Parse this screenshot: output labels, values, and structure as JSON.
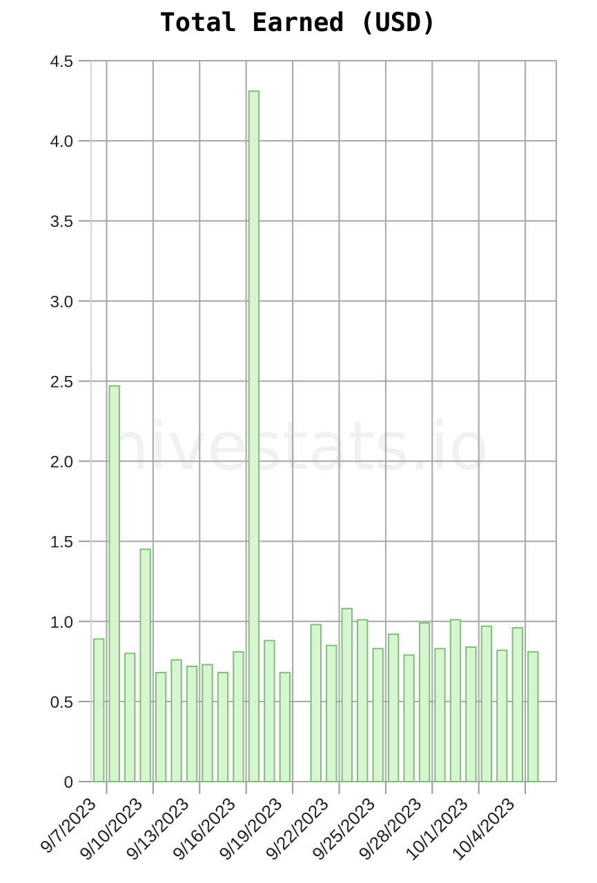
{
  "colors": {
    "bar_fill": "#d6f5d0",
    "bar_stroke": "#7fbf78",
    "grid": "#a6a6a6",
    "watermark": "#f1f1f1"
  },
  "watermark": "hivestats.io",
  "chart_data": {
    "type": "bar",
    "title": "Total Earned (USD)",
    "xlabel": "",
    "ylabel": "",
    "ylim": [
      0,
      4.5
    ],
    "grid": true,
    "y_ticks": [
      "0",
      "0.5",
      "1.0",
      "1.5",
      "2.0",
      "2.5",
      "3.0",
      "3.5",
      "4.0",
      "4.5"
    ],
    "x_tick_labels": [
      "9/7/2023",
      "9/10/2023",
      "9/13/2023",
      "9/16/2023",
      "9/19/2023",
      "9/22/2023",
      "9/25/2023",
      "9/28/2023",
      "10/1/2023",
      "10/4/2023"
    ],
    "categories": [
      "9/7/2023",
      "9/8/2023",
      "9/9/2023",
      "9/10/2023",
      "9/11/2023",
      "9/12/2023",
      "9/13/2023",
      "9/14/2023",
      "9/15/2023",
      "9/16/2023",
      "9/17/2023",
      "9/18/2023",
      "9/19/2023",
      "9/20/2023",
      "9/21/2023",
      "9/22/2023",
      "9/23/2023",
      "9/24/2023",
      "9/25/2023",
      "9/26/2023",
      "9/27/2023",
      "9/28/2023",
      "9/29/2023",
      "9/30/2023",
      "10/1/2023",
      "10/2/2023",
      "10/3/2023",
      "10/4/2023",
      "10/5/2023",
      "10/6/2023"
    ],
    "values": [
      0.89,
      2.47,
      0.8,
      1.45,
      0.68,
      0.76,
      0.72,
      0.73,
      0.68,
      0.81,
      4.31,
      0.88,
      0.68,
      null,
      0.98,
      0.85,
      1.08,
      1.01,
      0.83,
      0.92,
      0.79,
      0.99,
      0.83,
      1.01,
      0.84,
      0.97,
      0.82,
      0.96,
      0.81,
      null
    ]
  }
}
